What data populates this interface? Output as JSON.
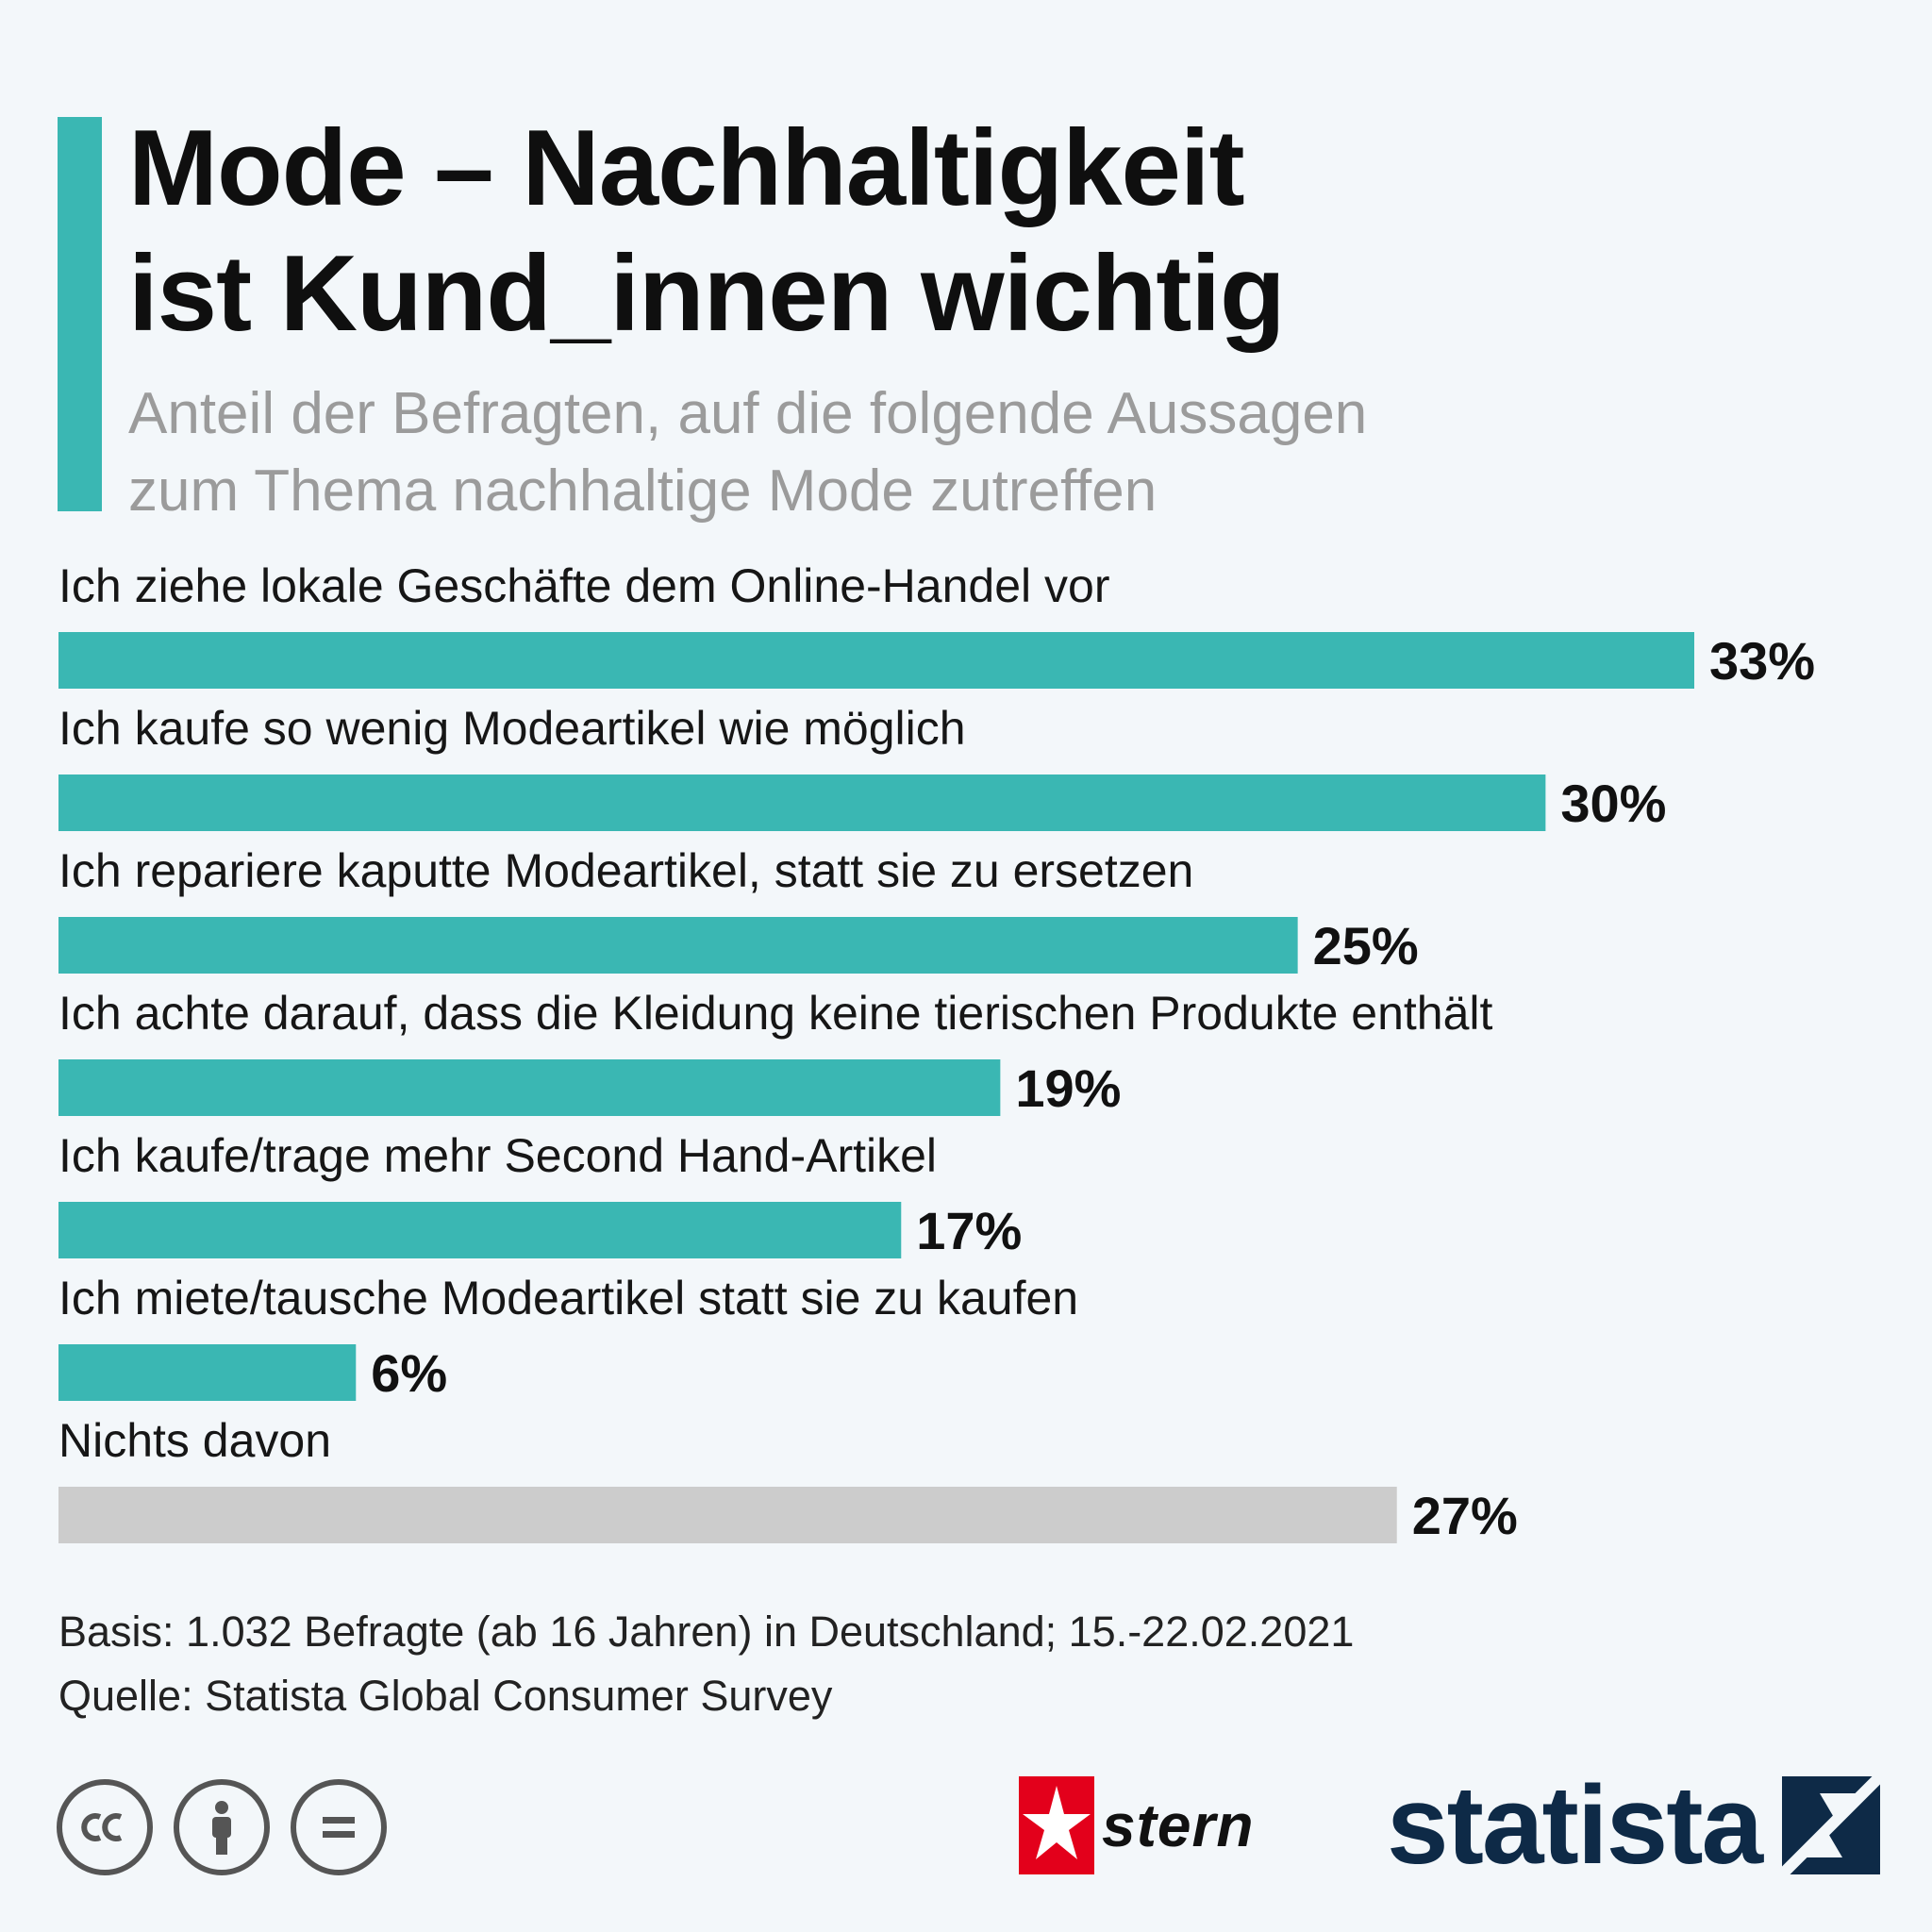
{
  "header": {
    "title_line1": "Mode – Nachhaltigkeit",
    "title_line2": "ist Kund_innen wichtig",
    "subtitle_line1": "Anteil der Befragten, auf die folgende Aussagen",
    "subtitle_line2": "zum Thema nachhaltige Mode zutreffen"
  },
  "colors": {
    "accent": "#3ab7b3",
    "neutral_bar": "#cccccc",
    "statista_navy": "#0e2a47",
    "stern_red": "#e3001b"
  },
  "chart_data": {
    "type": "bar",
    "orientation": "horizontal",
    "title": "Mode – Nachhaltigkeit ist Kund_innen wichtig",
    "subtitle": "Anteil der Befragten, auf die folgende Aussagen zum Thema nachhaltige Mode zutreffen",
    "unit": "%",
    "categories": [
      "Ich ziehe lokale Geschäfte dem Online-Handel vor",
      "Ich kaufe so wenig Modeartikel wie möglich",
      "Ich repariere kaputte Modeartikel, statt sie zu ersetzen",
      "Ich achte darauf, dass die Kleidung keine tierischen Produkte enthält",
      "Ich kaufe/trage mehr Second Hand-Artikel",
      "Ich miete/tausche Modeartikel statt sie zu kaufen",
      "Nichts davon"
    ],
    "values": [
      33,
      30,
      25,
      19,
      17,
      6,
      27
    ],
    "value_labels": [
      "33%",
      "30%",
      "25%",
      "19%",
      "17%",
      "6%",
      "27%"
    ],
    "bar_colors": [
      "#3ab7b3",
      "#3ab7b3",
      "#3ab7b3",
      "#3ab7b3",
      "#3ab7b3",
      "#3ab7b3",
      "#cccccc"
    ],
    "xlim": [
      0,
      33
    ],
    "grid": false,
    "legend": "none"
  },
  "footer": {
    "basis": "Basis: 1.032 Befragte (ab 16 Jahren) in Deutschland; 15.-22.02.2021",
    "source": "Quelle: Statista Global Consumer Survey",
    "license_icons": [
      "cc-icon",
      "by-person-icon",
      "nd-equals-icon"
    ],
    "stern_logo": "stern",
    "statista_logo": "statista"
  }
}
